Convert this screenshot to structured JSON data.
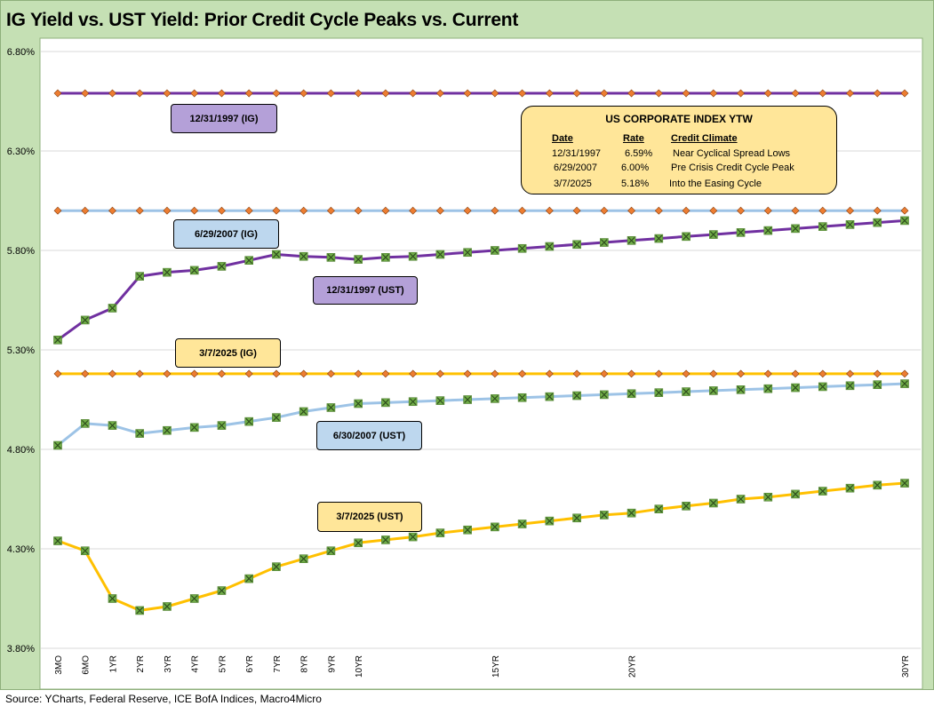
{
  "title": "IG Yield vs. UST Yield: Prior Credit Cycle Peaks vs. Current",
  "source": "Source: YCharts, Federal Reserve, ICE BofA Indices, Macro4Micro",
  "colors": {
    "frame_bg": "#c5e0b4",
    "purple": "#7030a0",
    "light_blue": "#9dc3e6",
    "gold": "#ffc000",
    "ig_marker": "#ed7d31",
    "ust_marker": "#70ad47",
    "tag_purple": "#b4a0d8",
    "tag_blue": "#bdd7ee",
    "tag_gold": "#ffe699"
  },
  "legend": {
    "title": "US CORPORATE  INDEX YTW",
    "headers": {
      "date": "Date",
      "rate": "Rate",
      "climate": "Credit Climate"
    },
    "rows": [
      {
        "date": "12/31/1997",
        "rate": "6.59%",
        "climate": "Near Cyclical Spread Lows"
      },
      {
        "date": "6/29/2007",
        "rate": "6.00%",
        "climate": "Pre Crisis Credit Cycle Peak"
      },
      {
        "date": "3/7/2025",
        "rate": "5.18%",
        "climate": "Into the Easing Cycle"
      }
    ]
  },
  "series_labels": {
    "ig_1997": "12/31/1997 (IG)",
    "ig_2007": "6/29/2007 (IG)",
    "ig_2025": "3/7/2025 (IG)",
    "ust_1997": "12/31/1997 (UST)",
    "ust_2007": "6/30/2007 (UST)",
    "ust_2025": "3/7/2025 (UST)"
  },
  "chart_data": {
    "type": "line",
    "title": "IG Yield vs. UST Yield: Prior Credit Cycle Peaks vs. Current",
    "ylim": [
      3.8,
      6.8
    ],
    "y_ticks": [
      "3.80%",
      "4.30%",
      "4.80%",
      "5.30%",
      "5.80%",
      "6.30%",
      "6.80%"
    ],
    "y_tick_values": [
      3.8,
      4.3,
      4.8,
      5.3,
      5.8,
      6.3,
      6.8
    ],
    "grid": true,
    "x_positions": [
      "3MO",
      "6MO",
      "1YR",
      "2YR",
      "3YR",
      "4YR",
      "5YR",
      "6YR",
      "7YR",
      "8YR",
      "9YR",
      "10YR",
      "11YR",
      "12YR",
      "13YR",
      "14YR",
      "15YR",
      "16YR",
      "17YR",
      "18YR",
      "19YR",
      "20YR",
      "21YR",
      "22YR",
      "23YR",
      "24YR",
      "25YR",
      "26YR",
      "27YR",
      "28YR",
      "29YR",
      "30YR"
    ],
    "x_tick_labels": [
      "3MO",
      "6MO",
      "1YR",
      "2YR",
      "3YR",
      "4YR",
      "5YR",
      "6YR",
      "7YR",
      "8YR",
      "9YR",
      "10YR",
      "",
      "",
      "",
      "",
      "15YR",
      "",
      "",
      "",
      "",
      "20YR",
      "",
      "",
      "",
      "",
      "",
      "",
      "",
      "",
      "",
      "30YR"
    ],
    "series": [
      {
        "name": "12/31/1997 (IG)",
        "color": "#7030a0",
        "marker": "diamond",
        "values": [
          6.59,
          6.59,
          6.59,
          6.59,
          6.59,
          6.59,
          6.59,
          6.59,
          6.59,
          6.59,
          6.59,
          6.59,
          6.59,
          6.59,
          6.59,
          6.59,
          6.59,
          6.59,
          6.59,
          6.59,
          6.59,
          6.59,
          6.59,
          6.59,
          6.59,
          6.59,
          6.59,
          6.59,
          6.59,
          6.59,
          6.59,
          6.59
        ]
      },
      {
        "name": "6/29/2007 (IG)",
        "color": "#9dc3e6",
        "marker": "diamond",
        "values": [
          6.0,
          6.0,
          6.0,
          6.0,
          6.0,
          6.0,
          6.0,
          6.0,
          6.0,
          6.0,
          6.0,
          6.0,
          6.0,
          6.0,
          6.0,
          6.0,
          6.0,
          6.0,
          6.0,
          6.0,
          6.0,
          6.0,
          6.0,
          6.0,
          6.0,
          6.0,
          6.0,
          6.0,
          6.0,
          6.0,
          6.0,
          6.0
        ]
      },
      {
        "name": "3/7/2025 (IG)",
        "color": "#ffc000",
        "marker": "diamond",
        "values": [
          5.18,
          5.18,
          5.18,
          5.18,
          5.18,
          5.18,
          5.18,
          5.18,
          5.18,
          5.18,
          5.18,
          5.18,
          5.18,
          5.18,
          5.18,
          5.18,
          5.18,
          5.18,
          5.18,
          5.18,
          5.18,
          5.18,
          5.18,
          5.18,
          5.18,
          5.18,
          5.18,
          5.18,
          5.18,
          5.18,
          5.18,
          5.18
        ]
      },
      {
        "name": "12/31/1997 (UST)",
        "color": "#7030a0",
        "marker": "x",
        "values": [
          5.35,
          5.45,
          5.51,
          5.67,
          5.69,
          5.7,
          5.72,
          5.75,
          5.78,
          5.77,
          5.765,
          5.755,
          5.765,
          5.77,
          5.78,
          5.79,
          5.8,
          5.81,
          5.82,
          5.83,
          5.84,
          5.85,
          5.86,
          5.87,
          5.88,
          5.89,
          5.9,
          5.91,
          5.92,
          5.93,
          5.94,
          5.95
        ]
      },
      {
        "name": "6/30/2007 (UST)",
        "color": "#9dc3e6",
        "marker": "x",
        "values": [
          4.82,
          4.93,
          4.92,
          4.88,
          4.895,
          4.91,
          4.92,
          4.94,
          4.96,
          4.99,
          5.01,
          5.03,
          5.035,
          5.04,
          5.045,
          5.05,
          5.055,
          5.06,
          5.065,
          5.07,
          5.075,
          5.08,
          5.085,
          5.09,
          5.095,
          5.1,
          5.105,
          5.11,
          5.115,
          5.12,
          5.125,
          5.13
        ]
      },
      {
        "name": "3/7/2025 (UST)",
        "color": "#ffc000",
        "marker": "x",
        "values": [
          4.34,
          4.29,
          4.05,
          3.99,
          4.01,
          4.05,
          4.09,
          4.15,
          4.21,
          4.25,
          4.29,
          4.33,
          4.345,
          4.36,
          4.38,
          4.395,
          4.41,
          4.425,
          4.44,
          4.455,
          4.47,
          4.48,
          4.5,
          4.515,
          4.53,
          4.55,
          4.56,
          4.575,
          4.59,
          4.605,
          4.62,
          4.63
        ]
      }
    ]
  }
}
